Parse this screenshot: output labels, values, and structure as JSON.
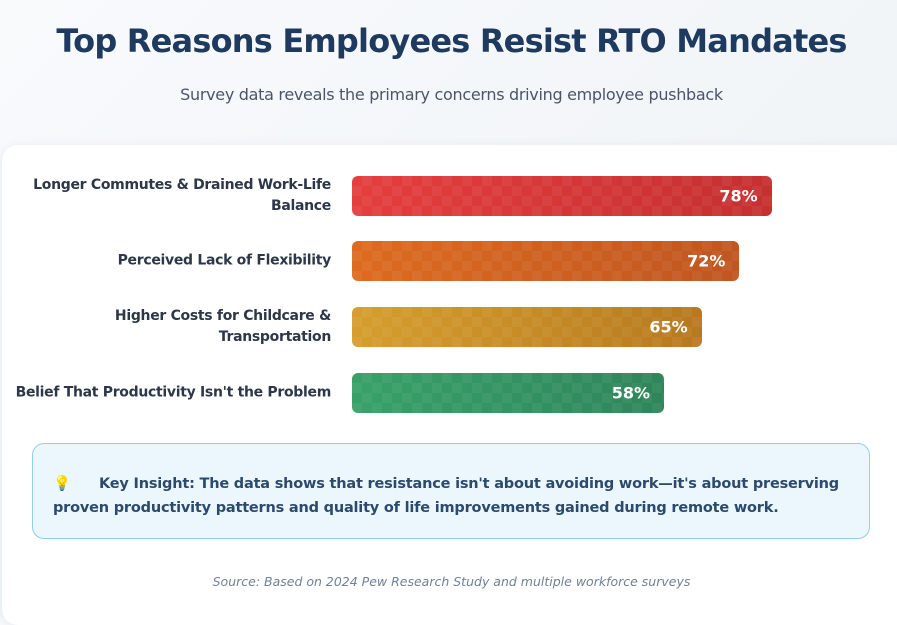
{
  "header": {
    "title": "Top Reasons Employees Resist RTO Mandates",
    "subtitle": "Survey data reveals the primary concerns driving employee pushback"
  },
  "chart_data": {
    "type": "bar",
    "orientation": "horizontal",
    "title": "Top Reasons Employees Resist RTO Mandates",
    "subtitle": "Survey data reveals the primary concerns driving employee pushback",
    "xlim": [
      0,
      100
    ],
    "unit": "%",
    "grid": false,
    "categories": [
      "Longer Commutes & Drained Work-Life Balance",
      "Perceived Lack of Flexibility",
      "Higher Costs for Childcare & Transportation",
      "Belief That Productivity Isn't the Problem"
    ],
    "values": [
      78,
      72,
      65,
      58
    ],
    "value_labels": [
      "78%",
      "72%",
      "65%",
      "58%"
    ],
    "colors": [
      [
        "#e53e3e",
        "#c53030"
      ],
      [
        "#dd6b20",
        "#c05621"
      ],
      [
        "#d69e2e",
        "#b7791f"
      ],
      [
        "#38a169",
        "#2f855a"
      ]
    ]
  },
  "insight": {
    "icon": "💡",
    "text": "Key Insight: The data shows that resistance isn't about avoiding work—it's about preserving proven productivity patterns and quality of life improvements gained during remote work."
  },
  "footer": {
    "source": "Source: Based on 2024 Pew Research Study and multiple workforce surveys"
  }
}
